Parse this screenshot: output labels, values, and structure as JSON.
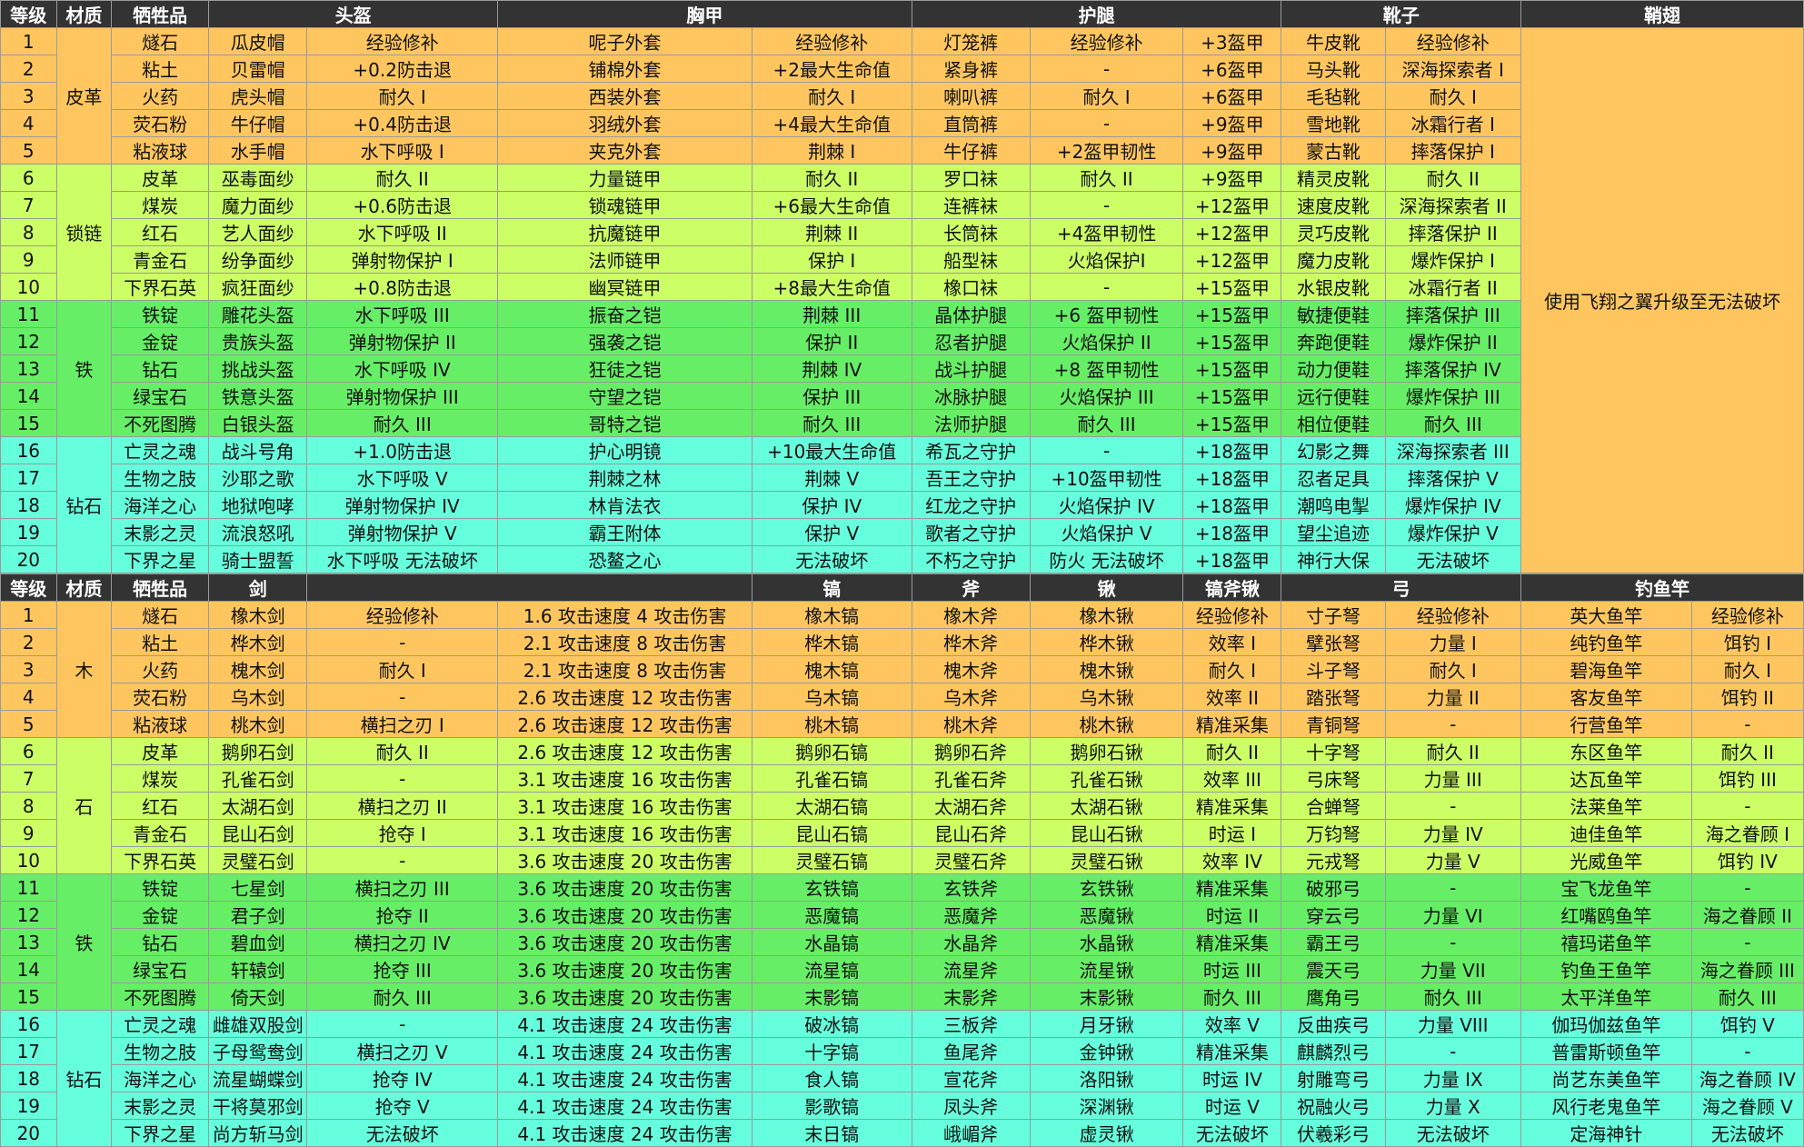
{
  "armor": {
    "headers": [
      "等级",
      "材质",
      "牺牲品",
      "头盔",
      "胸甲",
      "护腿",
      "靴子",
      "鞘翅"
    ],
    "elytra_note": "使用飞翔之翼升级至无法破坏",
    "groups": [
      {
        "material": "皮革",
        "rows": [
          [
            "1",
            "燧石",
            "瓜皮帽",
            "经验修补",
            "呢子外套",
            "经验修补",
            "灯笼裤",
            "经验修补",
            "+3盔甲",
            "牛皮靴",
            "经验修补"
          ],
          [
            "2",
            "粘土",
            "贝雷帽",
            "+0.2防击退",
            "铺棉外套",
            "+2最大生命值",
            "紧身裤",
            "-",
            "+6盔甲",
            "马头靴",
            "深海探索者 I"
          ],
          [
            "3",
            "火药",
            "虎头帽",
            "耐久 I",
            "西装外套",
            "耐久 I",
            "喇叭裤",
            "耐久 I",
            "+6盔甲",
            "毛毡靴",
            "耐久 I"
          ],
          [
            "4",
            "荧石粉",
            "牛仔帽",
            "+0.4防击退",
            "羽绒外套",
            "+4最大生命值",
            "直筒裤",
            "-",
            "+9盔甲",
            "雪地靴",
            "冰霜行者 I"
          ],
          [
            "5",
            "粘液球",
            "水手帽",
            "水下呼吸 I",
            "夹克外套",
            "荆棘 I",
            "牛仔裤",
            "+2盔甲韧性",
            "+9盔甲",
            "蒙古靴",
            "摔落保护 I"
          ]
        ]
      },
      {
        "material": "锁链",
        "rows": [
          [
            "6",
            "皮革",
            "巫毒面纱",
            "耐久 II",
            "力量链甲",
            "耐久 II",
            "罗口袜",
            "耐久 II",
            "+9盔甲",
            "精灵皮靴",
            "耐久 II"
          ],
          [
            "7",
            "煤炭",
            "魔力面纱",
            "+0.6防击退",
            "锁魂链甲",
            "+6最大生命值",
            "连裤袜",
            "-",
            "+12盔甲",
            "速度皮靴",
            "深海探索者 II"
          ],
          [
            "8",
            "红石",
            "艺人面纱",
            "水下呼吸 II",
            "抗魔链甲",
            "荆棘 II",
            "长筒袜",
            "+4盔甲韧性",
            "+12盔甲",
            "灵巧皮靴",
            "摔落保护 II"
          ],
          [
            "9",
            "青金石",
            "纷争面纱",
            "弹射物保护 I",
            "法师链甲",
            "保护 I",
            "船型袜",
            "火焰保护I",
            "+12盔甲",
            "魔力皮靴",
            "爆炸保护 I"
          ],
          [
            "10",
            "下界石英",
            "疯狂面纱",
            "+0.8防击退",
            "幽冥链甲",
            "+8最大生命值",
            "橡口袜",
            "-",
            "+15盔甲",
            "水银皮靴",
            "冰霜行者 II"
          ]
        ]
      },
      {
        "material": "铁",
        "rows": [
          [
            "11",
            "铁锭",
            "雕花头盔",
            "水下呼吸 III",
            "振奋之铠",
            "荆棘 III",
            "晶体护腿",
            "+6 盔甲韧性",
            "+15盔甲",
            "敏捷便鞋",
            "摔落保护 III"
          ],
          [
            "12",
            "金锭",
            "贵族头盔",
            "弹射物保护 II",
            "强袭之铠",
            "保护 II",
            "忍者护腿",
            "火焰保护 II",
            "+15盔甲",
            "奔跑便鞋",
            "爆炸保护 II"
          ],
          [
            "13",
            "钻石",
            "挑战头盔",
            "水下呼吸 IV",
            "狂徒之铠",
            "荆棘 IV",
            "战斗护腿",
            "+8 盔甲韧性",
            "+15盔甲",
            "动力便鞋",
            "摔落保护 IV"
          ],
          [
            "14",
            "绿宝石",
            "铁意头盔",
            "弹射物保护 III",
            "守望之铠",
            "保护 III",
            "冰脉护腿",
            "火焰保护 III",
            "+15盔甲",
            "远行便鞋",
            "爆炸保护 III"
          ],
          [
            "15",
            "不死图腾",
            "白银头盔",
            "耐久 III",
            "哥特之铠",
            "耐久 III",
            "法师护腿",
            "耐久 III",
            "+15盔甲",
            "相位便鞋",
            "耐久 III"
          ]
        ]
      },
      {
        "material": "钻石",
        "rows": [
          [
            "16",
            "亡灵之魂",
            "战斗号角",
            "+1.0防击退",
            "护心明镜",
            "+10最大生命值",
            "希瓦之守护",
            "-",
            "+18盔甲",
            "幻影之舞",
            "深海探索者 III"
          ],
          [
            "17",
            "生物之肢",
            "沙耶之歌",
            "水下呼吸 V",
            "荆棘之林",
            "荆棘 V",
            "吾王之守护",
            "+10盔甲韧性",
            "+18盔甲",
            "忍者足具",
            "摔落保护 V"
          ],
          [
            "18",
            "海洋之心",
            "地狱咆哮",
            "弹射物保护 IV",
            "林肯法衣",
            "保护 IV",
            "红龙之守护",
            "火焰保护 IV",
            "+18盔甲",
            "潮鸣电掣",
            "爆炸保护 IV"
          ],
          [
            "19",
            "末影之灵",
            "流浪怒吼",
            "弹射物保护 V",
            "霸王附体",
            "保护 V",
            "歌者之守护",
            "火焰保护 V",
            "+18盔甲",
            "望尘追迹",
            "爆炸保护 V"
          ],
          [
            "20",
            "下界之星",
            "骑士盟誓",
            "水下呼吸 无法破坏",
            "恐鳌之心",
            "无法破坏",
            "不朽之守护",
            "防火 无法破坏",
            "+18盔甲",
            "神行大保",
            "无法破坏"
          ]
        ]
      }
    ]
  },
  "tools": {
    "headers": [
      "等级",
      "材质",
      "牺牲品",
      "剑",
      "",
      "镐",
      "斧",
      "锹",
      "镐斧锹",
      "弓",
      "钓鱼竿"
    ],
    "groups": [
      {
        "material": "木",
        "rows": [
          [
            "1",
            "燧石",
            "橡木剑",
            "经验修补",
            "1.6 攻击速度 4 攻击伤害",
            "橡木镐",
            "橡木斧",
            "橡木锹",
            "经验修补",
            "寸子弩",
            "经验修补",
            "英大鱼竿",
            "经验修补"
          ],
          [
            "2",
            "粘土",
            "桦木剑",
            "-",
            "2.1 攻击速度 8 攻击伤害",
            "桦木镐",
            "桦木斧",
            "桦木锹",
            "效率 I",
            "擘张弩",
            "力量 I",
            "纯钓鱼竿",
            "饵钓 I"
          ],
          [
            "3",
            "火药",
            "槐木剑",
            "耐久 I",
            "2.1 攻击速度 8 攻击伤害",
            "槐木镐",
            "槐木斧",
            "槐木锹",
            "耐久 I",
            "斗子弩",
            "耐久 I",
            "碧海鱼竿",
            "耐久 I"
          ],
          [
            "4",
            "荧石粉",
            "乌木剑",
            "-",
            "2.6 攻击速度 12 攻击伤害",
            "乌木镐",
            "乌木斧",
            "乌木锹",
            "效率 II",
            "踏张弩",
            "力量 II",
            "客友鱼竿",
            "饵钓 II"
          ],
          [
            "5",
            "粘液球",
            "桃木剑",
            "横扫之刃 I",
            "2.6 攻击速度 12 攻击伤害",
            "桃木镐",
            "桃木斧",
            "桃木锹",
            "精准采集",
            "青铜弩",
            "-",
            "行营鱼竿",
            "-"
          ]
        ]
      },
      {
        "material": "石",
        "rows": [
          [
            "6",
            "皮革",
            "鹅卵石剑",
            "耐久 II",
            "2.6 攻击速度 12 攻击伤害",
            "鹅卵石镐",
            "鹅卵石斧",
            "鹅卵石锹",
            "耐久 II",
            "十字弩",
            "耐久 II",
            "东区鱼竿",
            "耐久 II"
          ],
          [
            "7",
            "煤炭",
            "孔雀石剑",
            "-",
            "3.1 攻击速度 16 攻击伤害",
            "孔雀石镐",
            "孔雀石斧",
            "孔雀石锹",
            "效率 III",
            "弓床弩",
            "力量 III",
            "达瓦鱼竿",
            "饵钓 III"
          ],
          [
            "8",
            "红石",
            "太湖石剑",
            "横扫之刃 II",
            "3.1 攻击速度 16 攻击伤害",
            "太湖石镐",
            "太湖石斧",
            "太湖石锹",
            "精准采集",
            "合蝉弩",
            "-",
            "法莱鱼竿",
            "-"
          ],
          [
            "9",
            "青金石",
            "昆山石剑",
            "抢夺 I",
            "3.1 攻击速度 16 攻击伤害",
            "昆山石镐",
            "昆山石斧",
            "昆山石锹",
            "时运 I",
            "万钧弩",
            "力量 IV",
            "迪佳鱼竿",
            "海之眷顾 I"
          ],
          [
            "10",
            "下界石英",
            "灵璧石剑",
            "-",
            "3.6 攻击速度 20 攻击伤害",
            "灵璧石镐",
            "灵璧石斧",
            "灵璧石锹",
            "效率 IV",
            "元戎弩",
            "力量 V",
            "光威鱼竿",
            "饵钓 IV"
          ]
        ]
      },
      {
        "material": "铁",
        "rows": [
          [
            "11",
            "铁锭",
            "七星剑",
            "横扫之刃 III",
            "3.6 攻击速度 20 攻击伤害",
            "玄铁镐",
            "玄铁斧",
            "玄铁锹",
            "精准采集",
            "破邪弓",
            "-",
            "宝飞龙鱼竿",
            "-"
          ],
          [
            "12",
            "金锭",
            "君子剑",
            "抢夺 II",
            "3.6 攻击速度 20 攻击伤害",
            "恶魔镐",
            "恶魔斧",
            "恶魔锹",
            "时运 II",
            "穿云弓",
            "力量 VI",
            "红嘴鸥鱼竿",
            "海之眷顾 II"
          ],
          [
            "13",
            "钻石",
            "碧血剑",
            "横扫之刃 IV",
            "3.6 攻击速度 20 攻击伤害",
            "水晶镐",
            "水晶斧",
            "水晶锹",
            "精准采集",
            "霸王弓",
            "-",
            "禧玛诺鱼竿",
            "-"
          ],
          [
            "14",
            "绿宝石",
            "轩辕剑",
            "抢夺 III",
            "3.6 攻击速度 20 攻击伤害",
            "流星镐",
            "流星斧",
            "流星锹",
            "时运 III",
            "震天弓",
            "力量 VII",
            "钓鱼王鱼竿",
            "海之眷顾 III"
          ],
          [
            "15",
            "不死图腾",
            "倚天剑",
            "耐久 III",
            "3.6 攻击速度 20 攻击伤害",
            "末影镐",
            "末影斧",
            "末影锹",
            "耐久 III",
            "鹰角弓",
            "耐久 III",
            "太平洋鱼竿",
            "耐久 III"
          ]
        ]
      },
      {
        "material": "钻石",
        "rows": [
          [
            "16",
            "亡灵之魂",
            "雌雄双股剑",
            "-",
            "4.1 攻击速度 24 攻击伤害",
            "破冰镐",
            "三板斧",
            "月牙锹",
            "效率 V",
            "反曲疾弓",
            "力量 VIII",
            "伽玛伽兹鱼竿",
            "饵钓 V"
          ],
          [
            "17",
            "生物之肢",
            "子母鸳鸯剑",
            "横扫之刃 V",
            "4.1 攻击速度 24 攻击伤害",
            "十字镐",
            "鱼尾斧",
            "金钟锹",
            "精准采集",
            "麒麟烈弓",
            "-",
            "普雷斯顿鱼竿",
            "-"
          ],
          [
            "18",
            "海洋之心",
            "流星蝴蝶剑",
            "抢夺 IV",
            "4.1 攻击速度 24 攻击伤害",
            "食人镐",
            "宣花斧",
            "洛阳锹",
            "时运 IV",
            "射雕弯弓",
            "力量 IX",
            "尚艺东美鱼竿",
            "海之眷顾 IV"
          ],
          [
            "19",
            "末影之灵",
            "干将莫邪剑",
            "抢夺 V",
            "4.1 攻击速度 24 攻击伤害",
            "影歌镐",
            "凤头斧",
            "深渊锹",
            "时运 V",
            "祝融火弓",
            "力量 X",
            "风行老鬼鱼竿",
            "海之眷顾 V"
          ],
          [
            "20",
            "下界之星",
            "尚方斩马剑",
            "无法破坏",
            "4.1 攻击速度 24 攻击伤害",
            "末日镐",
            "峨嵋斧",
            "虚灵锹",
            "无法破坏",
            "伏羲彩弓",
            "无法破坏",
            "定海神针",
            "无法破坏"
          ]
        ]
      }
    ]
  }
}
